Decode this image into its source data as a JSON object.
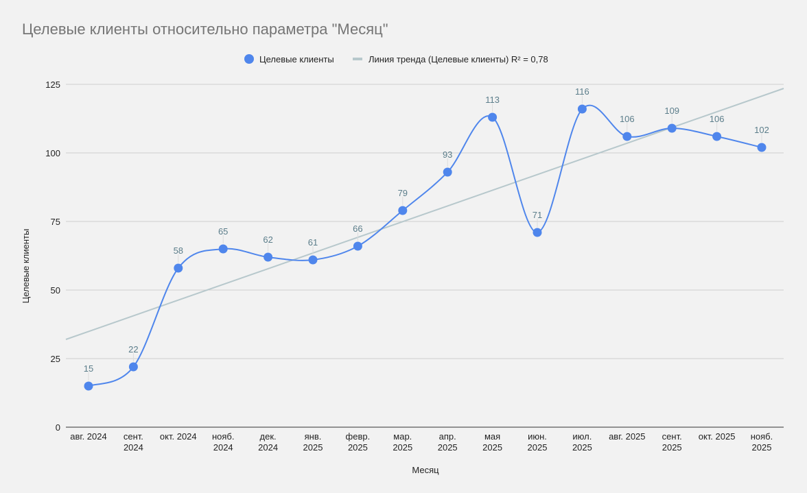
{
  "chart_data": {
    "type": "line",
    "title": "Целевые клиенты относительно параметра \"Месяц\"",
    "xlabel": "Месяц",
    "ylabel": "Целевые клиенты",
    "ylim": [
      0,
      125
    ],
    "yticks": [
      0,
      25,
      50,
      75,
      100,
      125
    ],
    "categories": [
      [
        "авг. 2024"
      ],
      [
        "сент.",
        "2024"
      ],
      [
        "окт. 2024"
      ],
      [
        "нояб.",
        "2024"
      ],
      [
        "дек.",
        "2024"
      ],
      [
        "янв.",
        "2025"
      ],
      [
        "февр.",
        "2025"
      ],
      [
        "мар.",
        "2025"
      ],
      [
        "апр.",
        "2025"
      ],
      [
        "мая",
        "2025"
      ],
      [
        "июн.",
        "2025"
      ],
      [
        "июл.",
        "2025"
      ],
      [
        "авг. 2025"
      ],
      [
        "сент.",
        "2025"
      ],
      [
        "окт. 2025"
      ],
      [
        "нояб.",
        "2025"
      ]
    ],
    "series": [
      {
        "name": "Целевые клиенты",
        "color": "#4f86ec",
        "values": [
          15,
          22,
          58,
          65,
          62,
          61,
          66,
          79,
          93,
          113,
          71,
          116,
          106,
          109,
          106,
          102
        ]
      }
    ],
    "trendline": {
      "name": "Линия тренда (Целевые клиенты) R² = 0,78",
      "color": "#b7c8cc",
      "start_value": 32,
      "end_value": 123.5
    },
    "grid": true,
    "legend_position": "top-center"
  }
}
